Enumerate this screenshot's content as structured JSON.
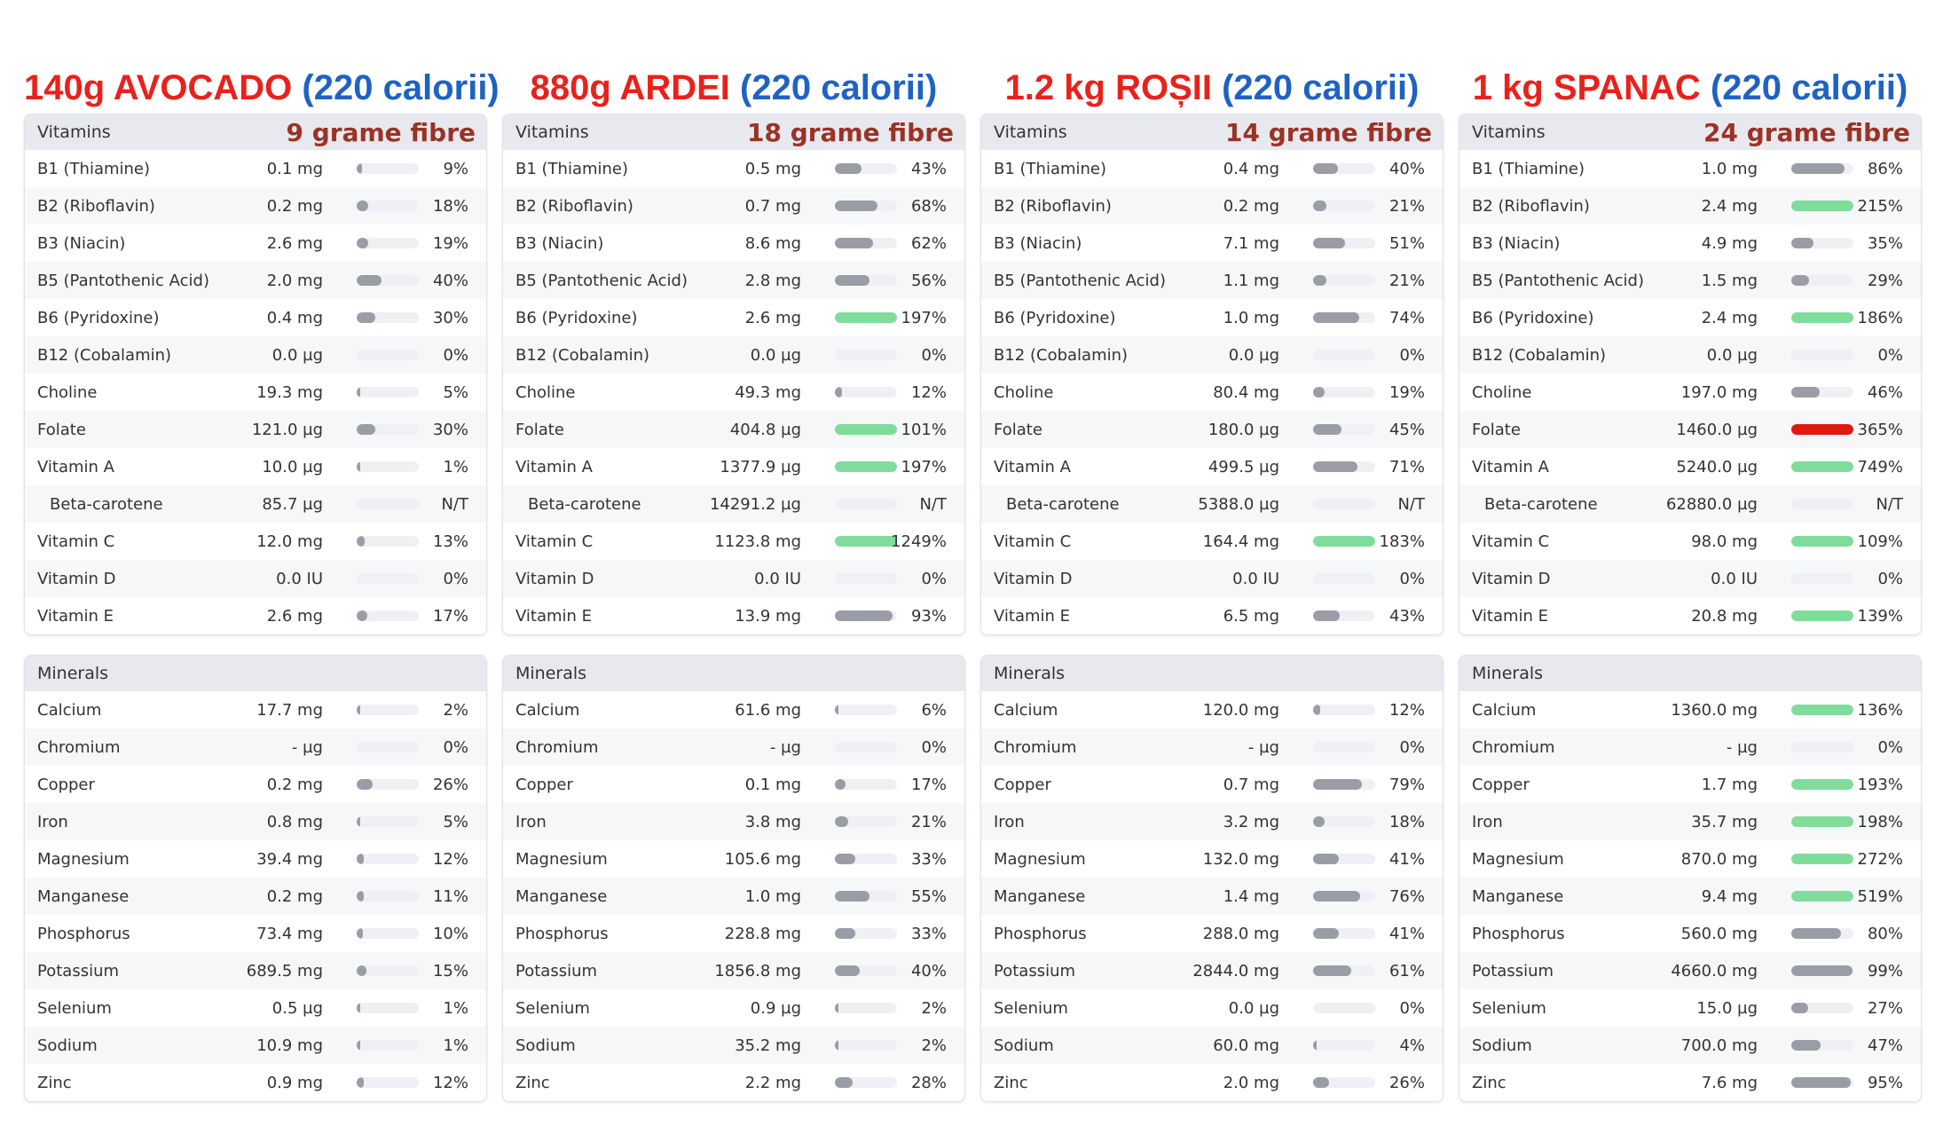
{
  "colors": {
    "normal": "#9a9ca6",
    "high": "#7fdc9a",
    "excess": "#dd1a12",
    "track": "#eef0f3"
  },
  "columns": [
    {
      "food": "140g AVOCADO",
      "calories": "(220 calorii)",
      "fibre": "9 grame fibre",
      "vitamins_label": "Vitamins",
      "minerals_label": "Minerals",
      "vitamins": [
        {
          "name": "B1 (Thiamine)",
          "amount": "0.1 mg",
          "percent": "9%",
          "fill": 0.09,
          "level": "normal"
        },
        {
          "name": "B2 (Riboflavin)",
          "amount": "0.2 mg",
          "percent": "18%",
          "fill": 0.18,
          "level": "normal"
        },
        {
          "name": "B3 (Niacin)",
          "amount": "2.6 mg",
          "percent": "19%",
          "fill": 0.19,
          "level": "normal"
        },
        {
          "name": "B5 (Pantothenic Acid)",
          "amount": "2.0 mg",
          "percent": "40%",
          "fill": 0.4,
          "level": "normal"
        },
        {
          "name": "B6 (Pyridoxine)",
          "amount": "0.4 mg",
          "percent": "30%",
          "fill": 0.3,
          "level": "normal"
        },
        {
          "name": "B12 (Cobalamin)",
          "amount": "0.0 µg",
          "percent": "0%",
          "fill": 0,
          "level": "normal"
        },
        {
          "name": "Choline",
          "amount": "19.3 mg",
          "percent": "5%",
          "fill": 0.05,
          "level": "normal"
        },
        {
          "name": "Folate",
          "amount": "121.0 µg",
          "percent": "30%",
          "fill": 0.3,
          "level": "normal"
        },
        {
          "name": "Vitamin A",
          "amount": "10.0 µg",
          "percent": "1%",
          "fill": 0.01,
          "level": "normal"
        },
        {
          "name": "Beta-carotene",
          "amount": "85.7 µg",
          "percent": "N/T",
          "fill": 0,
          "level": "normal",
          "indent": true
        },
        {
          "name": "Vitamin C",
          "amount": "12.0 mg",
          "percent": "13%",
          "fill": 0.13,
          "level": "normal"
        },
        {
          "name": "Vitamin D",
          "amount": "0.0 IU",
          "percent": "0%",
          "fill": 0,
          "level": "normal"
        },
        {
          "name": "Vitamin E",
          "amount": "2.6 mg",
          "percent": "17%",
          "fill": 0.17,
          "level": "normal"
        }
      ],
      "minerals": [
        {
          "name": "Calcium",
          "amount": "17.7 mg",
          "percent": "2%",
          "fill": 0.02,
          "level": "normal"
        },
        {
          "name": "Chromium",
          "amount": "- µg",
          "percent": "0%",
          "fill": 0,
          "level": "normal"
        },
        {
          "name": "Copper",
          "amount": "0.2 mg",
          "percent": "26%",
          "fill": 0.26,
          "level": "normal"
        },
        {
          "name": "Iron",
          "amount": "0.8 mg",
          "percent": "5%",
          "fill": 0.05,
          "level": "normal"
        },
        {
          "name": "Magnesium",
          "amount": "39.4 mg",
          "percent": "12%",
          "fill": 0.12,
          "level": "normal"
        },
        {
          "name": "Manganese",
          "amount": "0.2 mg",
          "percent": "11%",
          "fill": 0.11,
          "level": "normal"
        },
        {
          "name": "Phosphorus",
          "amount": "73.4 mg",
          "percent": "10%",
          "fill": 0.1,
          "level": "normal"
        },
        {
          "name": "Potassium",
          "amount": "689.5 mg",
          "percent": "15%",
          "fill": 0.15,
          "level": "normal"
        },
        {
          "name": "Selenium",
          "amount": "0.5 µg",
          "percent": "1%",
          "fill": 0.01,
          "level": "normal"
        },
        {
          "name": "Sodium",
          "amount": "10.9 mg",
          "percent": "1%",
          "fill": 0.01,
          "level": "normal"
        },
        {
          "name": "Zinc",
          "amount": "0.9 mg",
          "percent": "12%",
          "fill": 0.12,
          "level": "normal"
        }
      ]
    },
    {
      "food": "880g ARDEI",
      "calories": "(220 calorii)",
      "fibre": "18 grame fibre",
      "vitamins_label": "Vitamins",
      "minerals_label": "Minerals",
      "vitamins": [
        {
          "name": "B1 (Thiamine)",
          "amount": "0.5 mg",
          "percent": "43%",
          "fill": 0.43,
          "level": "normal"
        },
        {
          "name": "B2 (Riboflavin)",
          "amount": "0.7 mg",
          "percent": "68%",
          "fill": 0.68,
          "level": "normal"
        },
        {
          "name": "B3 (Niacin)",
          "amount": "8.6 mg",
          "percent": "62%",
          "fill": 0.62,
          "level": "normal"
        },
        {
          "name": "B5 (Pantothenic Acid)",
          "amount": "2.8 mg",
          "percent": "56%",
          "fill": 0.56,
          "level": "normal"
        },
        {
          "name": "B6 (Pyridoxine)",
          "amount": "2.6 mg",
          "percent": "197%",
          "fill": 1,
          "level": "high"
        },
        {
          "name": "B12 (Cobalamin)",
          "amount": "0.0 µg",
          "percent": "0%",
          "fill": 0,
          "level": "normal"
        },
        {
          "name": "Choline",
          "amount": "49.3 mg",
          "percent": "12%",
          "fill": 0.12,
          "level": "normal"
        },
        {
          "name": "Folate",
          "amount": "404.8 µg",
          "percent": "101%",
          "fill": 1,
          "level": "high"
        },
        {
          "name": "Vitamin A",
          "amount": "1377.9 µg",
          "percent": "197%",
          "fill": 1,
          "level": "high"
        },
        {
          "name": "Beta-carotene",
          "amount": "14291.2 µg",
          "percent": "N/T",
          "fill": 0,
          "level": "normal",
          "indent": true
        },
        {
          "name": "Vitamin C",
          "amount": "1123.8 mg",
          "percent": "1249%",
          "fill": 1,
          "level": "high"
        },
        {
          "name": "Vitamin D",
          "amount": "0.0 IU",
          "percent": "0%",
          "fill": 0,
          "level": "normal"
        },
        {
          "name": "Vitamin E",
          "amount": "13.9 mg",
          "percent": "93%",
          "fill": 0.93,
          "level": "normal"
        }
      ],
      "minerals": [
        {
          "name": "Calcium",
          "amount": "61.6 mg",
          "percent": "6%",
          "fill": 0.06,
          "level": "normal"
        },
        {
          "name": "Chromium",
          "amount": "- µg",
          "percent": "0%",
          "fill": 0,
          "level": "normal"
        },
        {
          "name": "Copper",
          "amount": "0.1 mg",
          "percent": "17%",
          "fill": 0.17,
          "level": "normal"
        },
        {
          "name": "Iron",
          "amount": "3.8 mg",
          "percent": "21%",
          "fill": 0.21,
          "level": "normal"
        },
        {
          "name": "Magnesium",
          "amount": "105.6 mg",
          "percent": "33%",
          "fill": 0.33,
          "level": "normal"
        },
        {
          "name": "Manganese",
          "amount": "1.0 mg",
          "percent": "55%",
          "fill": 0.55,
          "level": "normal"
        },
        {
          "name": "Phosphorus",
          "amount": "228.8 mg",
          "percent": "33%",
          "fill": 0.33,
          "level": "normal"
        },
        {
          "name": "Potassium",
          "amount": "1856.8 mg",
          "percent": "40%",
          "fill": 0.4,
          "level": "normal"
        },
        {
          "name": "Selenium",
          "amount": "0.9 µg",
          "percent": "2%",
          "fill": 0.02,
          "level": "normal"
        },
        {
          "name": "Sodium",
          "amount": "35.2 mg",
          "percent": "2%",
          "fill": 0.02,
          "level": "normal"
        },
        {
          "name": "Zinc",
          "amount": "2.2 mg",
          "percent": "28%",
          "fill": 0.28,
          "level": "normal"
        }
      ]
    },
    {
      "food": "1.2 kg ROȘII",
      "calories": "(220 calorii)",
      "fibre": "14 grame fibre",
      "vitamins_label": "Vitamins",
      "minerals_label": "Minerals",
      "vitamins": [
        {
          "name": "B1 (Thiamine)",
          "amount": "0.4 mg",
          "percent": "40%",
          "fill": 0.4,
          "level": "normal"
        },
        {
          "name": "B2 (Riboflavin)",
          "amount": "0.2 mg",
          "percent": "21%",
          "fill": 0.21,
          "level": "normal"
        },
        {
          "name": "B3 (Niacin)",
          "amount": "7.1 mg",
          "percent": "51%",
          "fill": 0.51,
          "level": "normal"
        },
        {
          "name": "B5 (Pantothenic Acid)",
          "amount": "1.1 mg",
          "percent": "21%",
          "fill": 0.21,
          "level": "normal"
        },
        {
          "name": "B6 (Pyridoxine)",
          "amount": "1.0 mg",
          "percent": "74%",
          "fill": 0.74,
          "level": "normal"
        },
        {
          "name": "B12 (Cobalamin)",
          "amount": "0.0 µg",
          "percent": "0%",
          "fill": 0,
          "level": "normal"
        },
        {
          "name": "Choline",
          "amount": "80.4 mg",
          "percent": "19%",
          "fill": 0.19,
          "level": "normal"
        },
        {
          "name": "Folate",
          "amount": "180.0 µg",
          "percent": "45%",
          "fill": 0.45,
          "level": "normal"
        },
        {
          "name": "Vitamin A",
          "amount": "499.5 µg",
          "percent": "71%",
          "fill": 0.71,
          "level": "normal"
        },
        {
          "name": "Beta-carotene",
          "amount": "5388.0 µg",
          "percent": "N/T",
          "fill": 0,
          "level": "normal",
          "indent": true
        },
        {
          "name": "Vitamin C",
          "amount": "164.4 mg",
          "percent": "183%",
          "fill": 1,
          "level": "high"
        },
        {
          "name": "Vitamin D",
          "amount": "0.0 IU",
          "percent": "0%",
          "fill": 0,
          "level": "normal"
        },
        {
          "name": "Vitamin E",
          "amount": "6.5 mg",
          "percent": "43%",
          "fill": 0.43,
          "level": "normal"
        }
      ],
      "minerals": [
        {
          "name": "Calcium",
          "amount": "120.0 mg",
          "percent": "12%",
          "fill": 0.12,
          "level": "normal"
        },
        {
          "name": "Chromium",
          "amount": "- µg",
          "percent": "0%",
          "fill": 0,
          "level": "normal"
        },
        {
          "name": "Copper",
          "amount": "0.7 mg",
          "percent": "79%",
          "fill": 0.79,
          "level": "normal"
        },
        {
          "name": "Iron",
          "amount": "3.2 mg",
          "percent": "18%",
          "fill": 0.18,
          "level": "normal"
        },
        {
          "name": "Magnesium",
          "amount": "132.0 mg",
          "percent": "41%",
          "fill": 0.41,
          "level": "normal"
        },
        {
          "name": "Manganese",
          "amount": "1.4 mg",
          "percent": "76%",
          "fill": 0.76,
          "level": "normal"
        },
        {
          "name": "Phosphorus",
          "amount": "288.0 mg",
          "percent": "41%",
          "fill": 0.41,
          "level": "normal"
        },
        {
          "name": "Potassium",
          "amount": "2844.0 mg",
          "percent": "61%",
          "fill": 0.61,
          "level": "normal"
        },
        {
          "name": "Selenium",
          "amount": "0.0 µg",
          "percent": "0%",
          "fill": 0,
          "level": "normal"
        },
        {
          "name": "Sodium",
          "amount": "60.0 mg",
          "percent": "4%",
          "fill": 0.04,
          "level": "normal"
        },
        {
          "name": "Zinc",
          "amount": "2.0 mg",
          "percent": "26%",
          "fill": 0.26,
          "level": "normal"
        }
      ]
    },
    {
      "food": "1 kg SPANAC",
      "calories": "(220 calorii)",
      "fibre": "24 grame fibre",
      "vitamins_label": "Vitamins",
      "minerals_label": "Minerals",
      "vitamins": [
        {
          "name": "B1 (Thiamine)",
          "amount": "1.0 mg",
          "percent": "86%",
          "fill": 0.86,
          "level": "normal"
        },
        {
          "name": "B2 (Riboflavin)",
          "amount": "2.4 mg",
          "percent": "215%",
          "fill": 1,
          "level": "high"
        },
        {
          "name": "B3 (Niacin)",
          "amount": "4.9 mg",
          "percent": "35%",
          "fill": 0.35,
          "level": "normal"
        },
        {
          "name": "B5 (Pantothenic Acid)",
          "amount": "1.5 mg",
          "percent": "29%",
          "fill": 0.29,
          "level": "normal"
        },
        {
          "name": "B6 (Pyridoxine)",
          "amount": "2.4 mg",
          "percent": "186%",
          "fill": 1,
          "level": "high"
        },
        {
          "name": "B12 (Cobalamin)",
          "amount": "0.0 µg",
          "percent": "0%",
          "fill": 0,
          "level": "normal"
        },
        {
          "name": "Choline",
          "amount": "197.0 mg",
          "percent": "46%",
          "fill": 0.46,
          "level": "normal"
        },
        {
          "name": "Folate",
          "amount": "1460.0 µg",
          "percent": "365%",
          "fill": 1,
          "level": "excess"
        },
        {
          "name": "Vitamin A",
          "amount": "5240.0 µg",
          "percent": "749%",
          "fill": 1,
          "level": "high"
        },
        {
          "name": "Beta-carotene",
          "amount": "62880.0 µg",
          "percent": "N/T",
          "fill": 0,
          "level": "normal",
          "indent": true
        },
        {
          "name": "Vitamin C",
          "amount": "98.0 mg",
          "percent": "109%",
          "fill": 1,
          "level": "high"
        },
        {
          "name": "Vitamin D",
          "amount": "0.0 IU",
          "percent": "0%",
          "fill": 0,
          "level": "normal"
        },
        {
          "name": "Vitamin E",
          "amount": "20.8 mg",
          "percent": "139%",
          "fill": 1,
          "level": "high"
        }
      ],
      "minerals": [
        {
          "name": "Calcium",
          "amount": "1360.0 mg",
          "percent": "136%",
          "fill": 1,
          "level": "high"
        },
        {
          "name": "Chromium",
          "amount": "- µg",
          "percent": "0%",
          "fill": 0,
          "level": "normal"
        },
        {
          "name": "Copper",
          "amount": "1.7 mg",
          "percent": "193%",
          "fill": 1,
          "level": "high"
        },
        {
          "name": "Iron",
          "amount": "35.7 mg",
          "percent": "198%",
          "fill": 1,
          "level": "high"
        },
        {
          "name": "Magnesium",
          "amount": "870.0 mg",
          "percent": "272%",
          "fill": 1,
          "level": "high"
        },
        {
          "name": "Manganese",
          "amount": "9.4 mg",
          "percent": "519%",
          "fill": 1,
          "level": "high"
        },
        {
          "name": "Phosphorus",
          "amount": "560.0 mg",
          "percent": "80%",
          "fill": 0.8,
          "level": "normal"
        },
        {
          "name": "Potassium",
          "amount": "4660.0 mg",
          "percent": "99%",
          "fill": 0.99,
          "level": "normal"
        },
        {
          "name": "Selenium",
          "amount": "15.0 µg",
          "percent": "27%",
          "fill": 0.27,
          "level": "normal"
        },
        {
          "name": "Sodium",
          "amount": "700.0 mg",
          "percent": "47%",
          "fill": 0.47,
          "level": "normal"
        },
        {
          "name": "Zinc",
          "amount": "7.6 mg",
          "percent": "95%",
          "fill": 0.95,
          "level": "normal"
        }
      ]
    }
  ]
}
